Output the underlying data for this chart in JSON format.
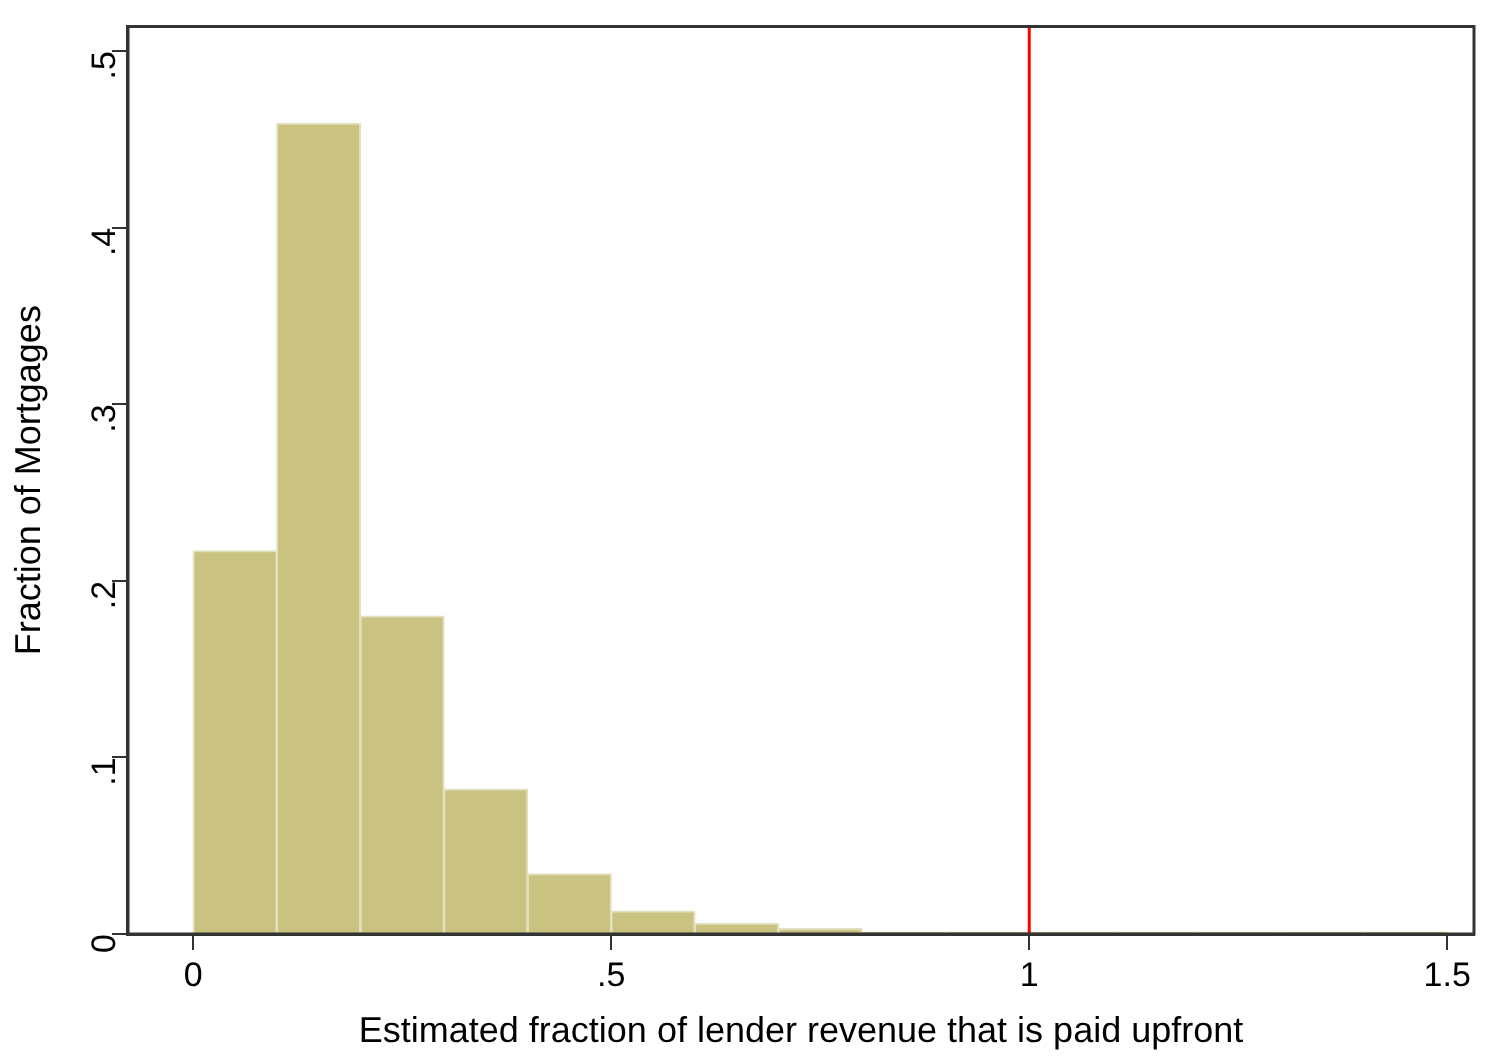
{
  "chart_data": {
    "type": "histogram",
    "xlabel": "Estimated fraction of lender revenue that is paid upfront",
    "ylabel": "Fraction of Mortgages",
    "bins": [
      0,
      0.1,
      0.2,
      0.3,
      0.4,
      0.5,
      0.6,
      0.7,
      0.8,
      0.9,
      1.0,
      1.1,
      1.2,
      1.3,
      1.4,
      1.5
    ],
    "values": [
      0.217,
      0.459,
      0.18,
      0.082,
      0.034,
      0.013,
      0.006,
      0.003,
      0.001,
      0.001,
      0.001,
      0.001,
      0.001,
      0.001,
      0.001
    ],
    "color": "#c9c280",
    "xlim": [
      -0.078,
      1.532
    ],
    "xticks": [
      0,
      {
        "value": 0.5,
        "label": ".5"
      },
      1,
      1.5
    ],
    "ylim": [
      0,
      0.514
    ],
    "yticks": [
      0,
      {
        "value": 0.1,
        "label": ".1"
      },
      {
        "value": 0.2,
        "label": ".2"
      },
      {
        "value": 0.3,
        "label": ".3"
      },
      {
        "value": 0.4,
        "label": ".4"
      },
      {
        "value": 0.5,
        "label": ".5"
      }
    ],
    "ref_lines": [
      {
        "axis": "x",
        "value": 1,
        "color": "#ff0000"
      }
    ],
    "grid": false,
    "legend": false
  }
}
